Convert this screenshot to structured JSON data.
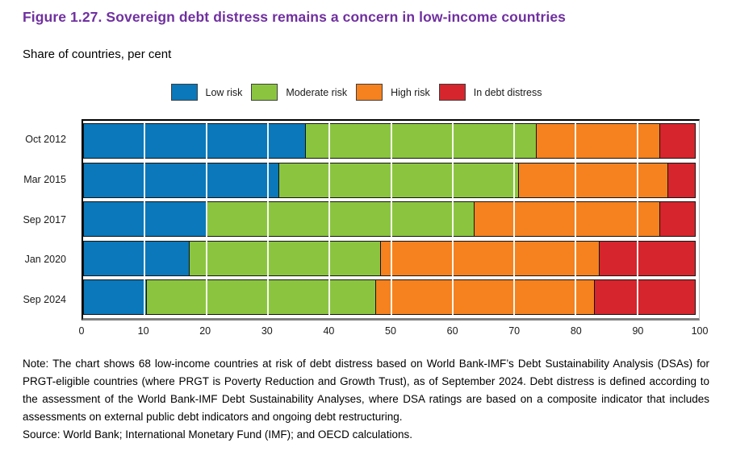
{
  "header": {
    "title": "Figure 1.27. Sovereign debt distress remains a concern in low-income countries",
    "subtitle": "Share of countries, per cent"
  },
  "chart_data": {
    "type": "bar",
    "orientation": "horizontal",
    "stacked": true,
    "title": "Figure 1.27. Sovereign debt distress remains a concern in low-income countries",
    "subtitle": "Share of countries, per cent",
    "categories": [
      "Oct 2012",
      "Mar 2015",
      "Sep 2017",
      "Jan 2020",
      "Sep 2024"
    ],
    "series": [
      {
        "name": "Low risk",
        "color": "#0a78ba",
        "values": [
          36.2,
          31.9,
          20.2,
          17.3,
          10.4
        ]
      },
      {
        "name": "Moderate risk",
        "color": "#8bc53f",
        "values": [
          37.6,
          39.1,
          43.6,
          31.2,
          37.4
        ]
      },
      {
        "name": "High risk",
        "color": "#f5821f",
        "values": [
          20.3,
          24.4,
          30.3,
          35.7,
          35.6
        ]
      },
      {
        "name": "In debt distress",
        "color": "#d6252c",
        "values": [
          5.9,
          4.6,
          5.9,
          15.8,
          16.6
        ]
      }
    ],
    "xlabel": "",
    "ylabel": "",
    "xlim": [
      0,
      100
    ],
    "xticks": [
      0,
      10,
      20,
      30,
      40,
      50,
      60,
      70,
      80,
      90,
      100
    ],
    "grid": "vertical white gridlines over bars",
    "legend_position": "top-center"
  },
  "colors": {
    "title": "#7030a0",
    "bar_border": "#141414",
    "axis_bottom": "#7f7f7f"
  },
  "footer": {
    "note": "Note: The chart shows 68 low-income countries at risk of debt distress based on World Bank-IMF’s Debt Sustainability Analysis (DSAs) for PRGT-eligible countries (where PRGT is Poverty Reduction and Growth Trust), as of September 2024. Debt distress is defined according to the assessment of the World Bank-IMF Debt Sustainability Analyses, where DSA ratings are based on a composite indicator that includes assessments on external public debt indicators and ongoing debt restructuring.",
    "source": "Source: World Bank; International Monetary Fund (IMF); and OECD calculations."
  }
}
